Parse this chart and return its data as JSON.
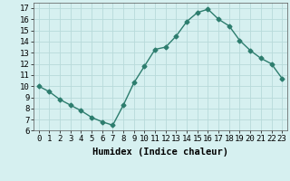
{
  "x": [
    0,
    1,
    2,
    3,
    4,
    5,
    6,
    7,
    8,
    9,
    10,
    11,
    12,
    13,
    14,
    15,
    16,
    17,
    18,
    19,
    20,
    21,
    22,
    23
  ],
  "y": [
    10.0,
    9.5,
    8.8,
    8.3,
    7.8,
    7.2,
    6.8,
    6.5,
    8.3,
    10.3,
    11.8,
    13.3,
    13.5,
    14.5,
    15.8,
    16.6,
    16.9,
    16.0,
    15.4,
    14.1,
    13.2,
    12.5,
    12.0,
    10.7
  ],
  "xlabel": "Humidex (Indice chaleur)",
  "ylim": [
    6,
    17.5
  ],
  "xlim": [
    -0.5,
    23.5
  ],
  "yticks": [
    6,
    7,
    8,
    9,
    10,
    11,
    12,
    13,
    14,
    15,
    16,
    17
  ],
  "xticks": [
    0,
    1,
    2,
    3,
    4,
    5,
    6,
    7,
    8,
    9,
    10,
    11,
    12,
    13,
    14,
    15,
    16,
    17,
    18,
    19,
    20,
    21,
    22,
    23
  ],
  "line_color": "#2d7d6e",
  "marker": "D",
  "marker_size": 2.5,
  "bg_color": "#d6f0f0",
  "grid_color": "#b8dada",
  "xlabel_fontsize": 7.5,
  "tick_fontsize": 6.5,
  "linewidth": 1.0
}
